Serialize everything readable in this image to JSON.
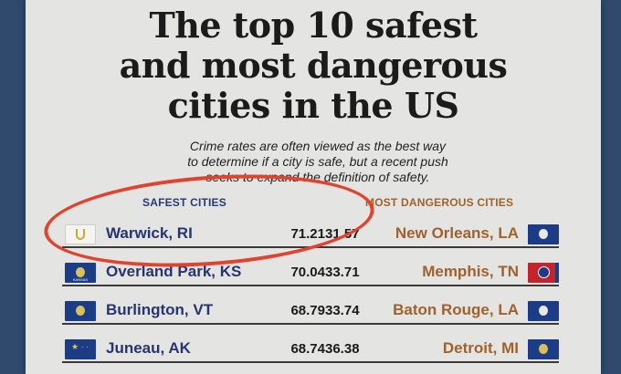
{
  "title_lines": [
    "The top 10 safest",
    "and most dangerous",
    "cities in the US"
  ],
  "subtitle_lines": [
    "Crime rates are often viewed as the best way",
    "to determine if a city is safe, but a recent push",
    "seeks to expand the definition of safety."
  ],
  "safest": {
    "heading": "SAFEST CITIES",
    "rows": [
      {
        "city": "Warwick, RI",
        "score": "71.21",
        "flag": "rhode-island-flag-icon"
      },
      {
        "city": "Overland Park, KS",
        "score": "70.04",
        "flag": "kansas-flag-icon",
        "flag_caption": "KANSAS"
      },
      {
        "city": "Burlington, VT",
        "score": "68.79",
        "flag": "vermont-flag-icon"
      },
      {
        "city": "Juneau, AK",
        "score": "68.74",
        "flag": "alaska-flag-icon"
      }
    ]
  },
  "dangerous": {
    "heading": "MOST DANGEROUS CITIES",
    "rows": [
      {
        "city": "New Orleans, LA",
        "score": "31.57",
        "flag": "louisiana-flag-icon"
      },
      {
        "city": "Memphis, TN",
        "score": "33.71",
        "flag": "tennessee-flag-icon"
      },
      {
        "city": "Baton Rouge, LA",
        "score": "33.74",
        "flag": "louisiana-flag-icon"
      },
      {
        "city": "Detroit, MI",
        "score": "36.38",
        "flag": "michigan-flag-icon"
      }
    ]
  },
  "colors": {
    "safe_text": "#27356f",
    "danger_text": "#a0622d",
    "highlight_circle": "#e0442f",
    "background": "#2f4a6c"
  }
}
